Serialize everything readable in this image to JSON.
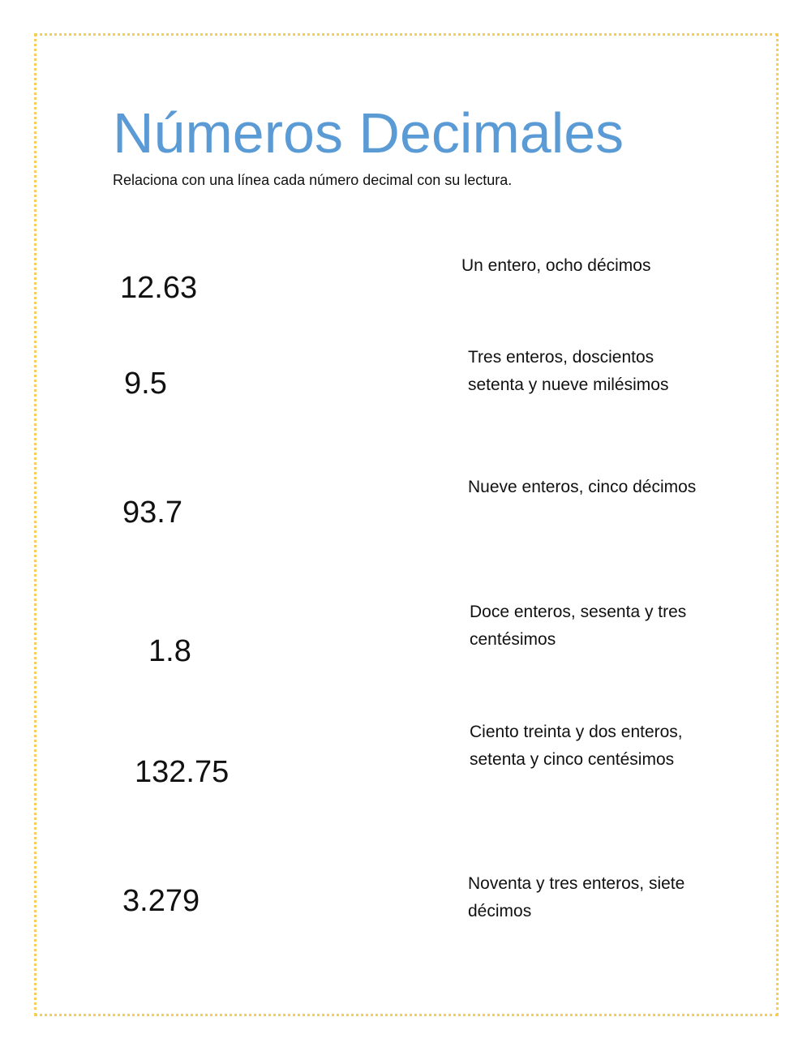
{
  "title": "Números Decimales",
  "instruction": "Relaciona con una línea cada número decimal con su lectura.",
  "border_color": "#f5cf55",
  "title_color": "#5b9bd5",
  "numbers": [
    "12.63",
    "9.5",
    "93.7",
    "1.8",
    "132.75",
    "3.279"
  ],
  "readings": [
    "Un entero, ocho décimos",
    "Tres enteros, doscientos setenta y nueve milésimos",
    "Nueve enteros, cinco décimos",
    "Doce enteros, sesenta y tres centésimos",
    "Ciento treinta y dos enteros, setenta y cinco centésimos",
    "Noventa y tres enteros, siete décimos"
  ]
}
